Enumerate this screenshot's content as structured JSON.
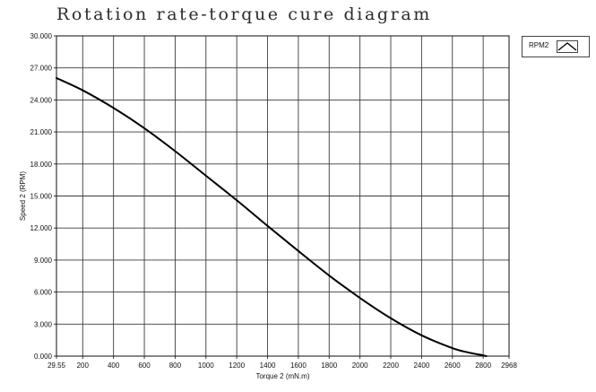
{
  "chart_data": {
    "type": "line",
    "title": "Rotation rate-torque cure diagram",
    "xlabel": "Torque 2 (mN.m)",
    "ylabel": "Speed 2 (RPM)",
    "xlim": [
      29.55,
      2968
    ],
    "ylim": [
      0,
      30
    ],
    "x_ticks": [
      29.55,
      200,
      400,
      600,
      800,
      1000,
      1200,
      1400,
      1600,
      1800,
      2000,
      2200,
      2400,
      2600,
      2800,
      2968
    ],
    "x_tick_labels": [
      "29.55",
      "200",
      "400",
      "600",
      "800",
      "1000",
      "1200",
      "1400",
      "1600",
      "1800",
      "2000",
      "2200",
      "2400",
      "2600",
      "2800",
      "2968"
    ],
    "y_ticks": [
      0,
      3,
      6,
      9,
      12,
      15,
      18,
      21,
      24,
      27,
      30
    ],
    "y_tick_labels": [
      "0.000",
      "3.000",
      "6.000",
      "9.000",
      "12.000",
      "15.000",
      "18.000",
      "21.000",
      "24.000",
      "27.000",
      "30.000"
    ],
    "grid": true,
    "legend_position": "top-right",
    "series": [
      {
        "name": "RPM2",
        "color": "#000000",
        "x": [
          29.55,
          200,
          400,
          600,
          800,
          1000,
          1200,
          1400,
          1600,
          1800,
          2000,
          2200,
          2400,
          2600,
          2700,
          2800,
          2820
        ],
        "y": [
          26.05,
          24.9,
          23.25,
          21.35,
          19.2,
          16.9,
          14.6,
          12.2,
          9.85,
          7.55,
          5.45,
          3.55,
          1.95,
          0.75,
          0.35,
          0.07,
          0.0
        ]
      }
    ]
  }
}
